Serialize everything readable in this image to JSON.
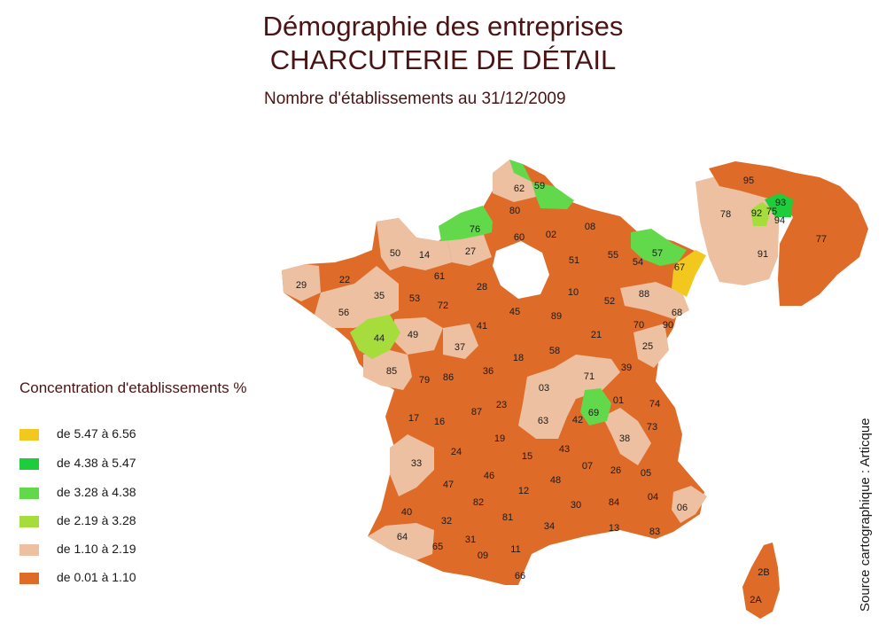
{
  "header": {
    "title_line1": "Démographie des entreprises",
    "title_line2": "CHARCUTERIE DE DÉTAIL",
    "subtitle": "Nombre d'établissements au 31/12/2009"
  },
  "legend": {
    "title": "Concentration d'etablissements %",
    "items": [
      {
        "label": "de 5.47 à 6.56",
        "color": "#f2c81e"
      },
      {
        "label": "de 4.38 à 5.47",
        "color": "#1fcc3c"
      },
      {
        "label": "de 3.28 à 4.38",
        "color": "#62d94a"
      },
      {
        "label": "de 2.19 à 3.28",
        "color": "#a6dc3c"
      },
      {
        "label": "de 1.10 à 2.19",
        "color": "#ecc0a0"
      },
      {
        "label": "de 0.01 à 1.10",
        "color": "#df6b28"
      }
    ]
  },
  "source": "Source cartographique : Articque",
  "departments": [
    {
      "code": "62",
      "class": "de 1.10 à 2.19"
    },
    {
      "code": "59",
      "class": "de 3.28 à 4.38"
    },
    {
      "code": "80",
      "class": "de 0.01 à 1.10"
    },
    {
      "code": "76",
      "class": "de 3.28 à 4.38"
    },
    {
      "code": "60",
      "class": "de 0.01 à 1.10"
    },
    {
      "code": "02",
      "class": "de 0.01 à 1.10"
    },
    {
      "code": "08",
      "class": "de 0.01 à 1.10"
    },
    {
      "code": "57",
      "class": "de 3.28 à 4.38"
    },
    {
      "code": "67",
      "class": "de 5.47 à 6.56"
    },
    {
      "code": "55",
      "class": "de 0.01 à 1.10"
    },
    {
      "code": "54",
      "class": "de 0.01 à 1.10"
    },
    {
      "code": "51",
      "class": "de 0.01 à 1.10"
    },
    {
      "code": "27",
      "class": "de 1.10 à 2.19"
    },
    {
      "code": "14",
      "class": "de 1.10 à 2.19"
    },
    {
      "code": "50",
      "class": "de 1.10 à 2.19"
    },
    {
      "code": "29",
      "class": "de 1.10 à 2.19"
    },
    {
      "code": "22",
      "class": "de 0.01 à 1.10"
    },
    {
      "code": "35",
      "class": "de 1.10 à 2.19"
    },
    {
      "code": "56",
      "class": "de 1.10 à 2.19"
    },
    {
      "code": "61",
      "class": "de 0.01 à 1.10"
    },
    {
      "code": "28",
      "class": "de 0.01 à 1.10"
    },
    {
      "code": "53",
      "class": "de 0.01 à 1.10"
    },
    {
      "code": "72",
      "class": "de 0.01 à 1.10"
    },
    {
      "code": "10",
      "class": "de 0.01 à 1.10"
    },
    {
      "code": "52",
      "class": "de 0.01 à 1.10"
    },
    {
      "code": "88",
      "class": "de 1.10 à 2.19"
    },
    {
      "code": "68",
      "class": "de 1.10 à 2.19"
    },
    {
      "code": "45",
      "class": "de 0.01 à 1.10"
    },
    {
      "code": "89",
      "class": "de 0.01 à 1.10"
    },
    {
      "code": "70",
      "class": "de 0.01 à 1.10"
    },
    {
      "code": "90",
      "class": "de 0.01 à 1.10"
    },
    {
      "code": "44",
      "class": "de 2.19 à 3.28"
    },
    {
      "code": "49",
      "class": "de 1.10 à 2.19"
    },
    {
      "code": "41",
      "class": "de 0.01 à 1.10"
    },
    {
      "code": "37",
      "class": "de 1.10 à 2.19"
    },
    {
      "code": "21",
      "class": "de 0.01 à 1.10"
    },
    {
      "code": "25",
      "class": "de 1.10 à 2.19"
    },
    {
      "code": "18",
      "class": "de 0.01 à 1.10"
    },
    {
      "code": "58",
      "class": "de 0.01 à 1.10"
    },
    {
      "code": "85",
      "class": "de 1.10 à 2.19"
    },
    {
      "code": "79",
      "class": "de 0.01 à 1.10"
    },
    {
      "code": "86",
      "class": "de 0.01 à 1.10"
    },
    {
      "code": "36",
      "class": "de 0.01 à 1.10"
    },
    {
      "code": "39",
      "class": "de 0.01 à 1.10"
    },
    {
      "code": "71",
      "class": "de 1.10 à 2.19"
    },
    {
      "code": "03",
      "class": "de 1.10 à 2.19"
    },
    {
      "code": "01",
      "class": "de 0.01 à 1.10"
    },
    {
      "code": "74",
      "class": "de 0.01 à 1.10"
    },
    {
      "code": "69",
      "class": "de 3.28 à 4.38"
    },
    {
      "code": "42",
      "class": "de 0.01 à 1.10"
    },
    {
      "code": "23",
      "class": "de 0.01 à 1.10"
    },
    {
      "code": "87",
      "class": "de 0.01 à 1.10"
    },
    {
      "code": "17",
      "class": "de 0.01 à 1.10"
    },
    {
      "code": "16",
      "class": "de 0.01 à 1.10"
    },
    {
      "code": "63",
      "class": "de 1.10 à 2.19"
    },
    {
      "code": "73",
      "class": "de 0.01 à 1.10"
    },
    {
      "code": "38",
      "class": "de 1.10 à 2.19"
    },
    {
      "code": "19",
      "class": "de 0.01 à 1.10"
    },
    {
      "code": "43",
      "class": "de 0.01 à 1.10"
    },
    {
      "code": "24",
      "class": "de 0.01 à 1.10"
    },
    {
      "code": "33",
      "class": "de 1.10 à 2.19"
    },
    {
      "code": "15",
      "class": "de 0.01 à 1.10"
    },
    {
      "code": "07",
      "class": "de 0.01 à 1.10"
    },
    {
      "code": "26",
      "class": "de 0.01 à 1.10"
    },
    {
      "code": "05",
      "class": "de 0.01 à 1.10"
    },
    {
      "code": "46",
      "class": "de 0.01 à 1.10"
    },
    {
      "code": "48",
      "class": "de 0.01 à 1.10"
    },
    {
      "code": "47",
      "class": "de 0.01 à 1.10"
    },
    {
      "code": "12",
      "class": "de 0.01 à 1.10"
    },
    {
      "code": "04",
      "class": "de 0.01 à 1.10"
    },
    {
      "code": "06",
      "class": "de 1.10 à 2.19"
    },
    {
      "code": "82",
      "class": "de 0.01 à 1.10"
    },
    {
      "code": "84",
      "class": "de 0.01 à 1.10"
    },
    {
      "code": "30",
      "class": "de 0.01 à 1.10"
    },
    {
      "code": "40",
      "class": "de 0.01 à 1.10"
    },
    {
      "code": "81",
      "class": "de 0.01 à 1.10"
    },
    {
      "code": "32",
      "class": "de 0.01 à 1.10"
    },
    {
      "code": "34",
      "class": "de 0.01 à 1.10"
    },
    {
      "code": "13",
      "class": "de 0.01 à 1.10"
    },
    {
      "code": "83",
      "class": "de 0.01 à 1.10"
    },
    {
      "code": "64",
      "class": "de 1.10 à 2.19"
    },
    {
      "code": "31",
      "class": "de 0.01 à 1.10"
    },
    {
      "code": "65",
      "class": "de 0.01 à 1.10"
    },
    {
      "code": "09",
      "class": "de 0.01 à 1.10"
    },
    {
      "code": "11",
      "class": "de 0.01 à 1.10"
    },
    {
      "code": "66",
      "class": "de 0.01 à 1.10"
    },
    {
      "code": "2B",
      "class": "de 0.01 à 1.10"
    },
    {
      "code": "2A",
      "class": "de 0.01 à 1.10"
    },
    {
      "code": "95",
      "class": "de 0.01 à 1.10"
    },
    {
      "code": "93",
      "class": "de 4.38 à 5.47"
    },
    {
      "code": "78",
      "class": "de 1.10 à 2.19"
    },
    {
      "code": "92",
      "class": "de 2.19 à 3.28"
    },
    {
      "code": "75",
      "class": "de 2.19 à 3.28"
    },
    {
      "code": "94",
      "class": "de 1.10 à 2.19"
    },
    {
      "code": "91",
      "class": "de 1.10 à 2.19"
    },
    {
      "code": "77",
      "class": "de 0.01 à 1.10"
    }
  ]
}
